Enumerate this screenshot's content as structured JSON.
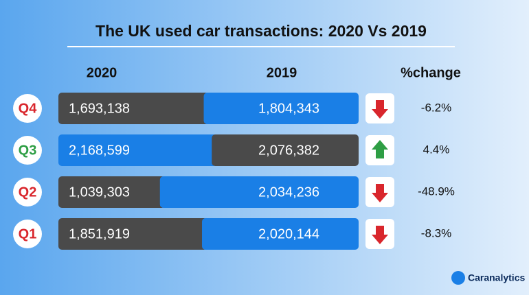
{
  "chart_data": {
    "type": "split-bar",
    "title": "The UK used car transactions: 2020 Vs 2019",
    "categories": [
      "Q4",
      "Q3",
      "Q2",
      "Q1"
    ],
    "series": [
      {
        "name": "2020",
        "values": [
          1693138,
          2168599,
          1039303,
          1851919
        ],
        "value_labels": [
          "1,693,138",
          "2,168,599",
          "1,039,303",
          "1,851,919"
        ]
      },
      {
        "name": "2019",
        "values": [
          1804343,
          2076382,
          2034236,
          2020144
        ],
        "value_labels": [
          "1,804,343",
          "2,076,382",
          "2,034,236",
          "2,020,144"
        ]
      }
    ],
    "change": {
      "name": "%change",
      "values": [
        -6.2,
        4.4,
        -48.9,
        -8.3
      ],
      "value_labels": [
        "-6.2%",
        "4.4%",
        "-48.9%",
        "-8.3%"
      ]
    },
    "higher_color": "#1a7fe6",
    "lower_color": "#4a4a4a",
    "up_color": "#2e9e44",
    "down_color": "#d9262c",
    "brand": "Caranalytics"
  }
}
